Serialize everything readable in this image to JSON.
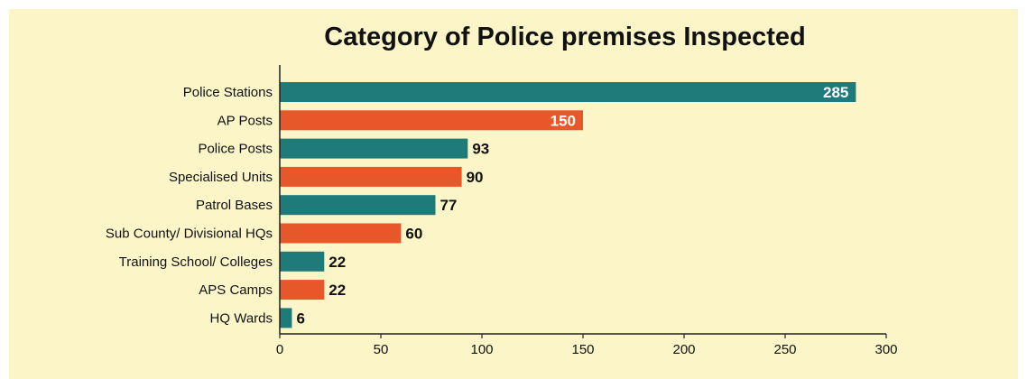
{
  "chart_data": {
    "type": "bar",
    "orientation": "horizontal",
    "title": "Category of Police premises Inspected",
    "categories": [
      "Police Stations",
      "AP Posts",
      "Police Posts",
      "Specialised Units",
      "Patrol Bases",
      "Sub County/ Divisional HQs",
      "Training School/ Colleges",
      "APS Camps",
      "HQ Wards"
    ],
    "values": [
      285,
      150,
      93,
      90,
      77,
      60,
      22,
      22,
      6
    ],
    "data_labels": [
      "285",
      "150",
      "93",
      "90",
      "77",
      "60",
      "22",
      "22",
      "6"
    ],
    "xlim": [
      0,
      300
    ],
    "xticks": [
      "0",
      "50",
      "100",
      "150",
      "200",
      "250",
      "300"
    ],
    "grid": false,
    "legend": "none",
    "colors": {
      "teal": "#1f7a7a",
      "orange": "#e8572a",
      "background": "#fbf5c8",
      "axis": "#222222",
      "label_inside": "#ffffff",
      "label_outside": "#111111"
    },
    "bar_colors": [
      "teal",
      "orange",
      "teal",
      "orange",
      "teal",
      "orange",
      "teal",
      "orange",
      "teal"
    ]
  }
}
